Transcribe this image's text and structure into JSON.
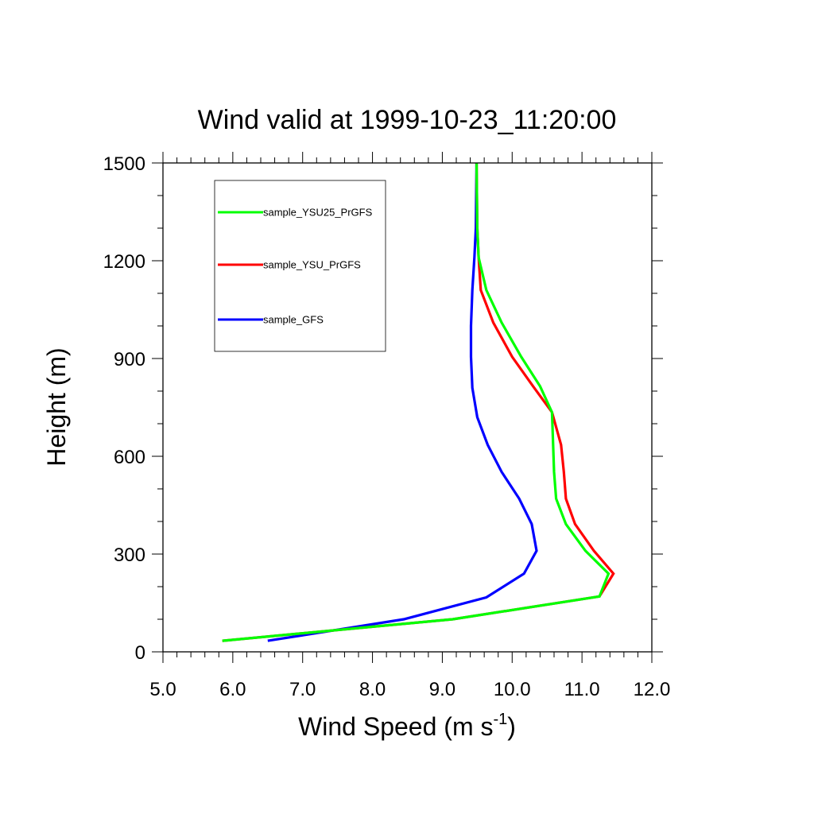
{
  "chart_data": {
    "type": "line",
    "title": "Wind valid at 1999-10-23_11:20:00",
    "xlabel_main": "Wind Speed (m s",
    "xlabel_sup": "-1",
    "xlabel_end": ")",
    "ylabel": "Height (m)",
    "xlim": [
      5.0,
      12.0
    ],
    "ylim": [
      0,
      1500
    ],
    "xticks": [
      5.0,
      6.0,
      7.0,
      8.0,
      9.0,
      10.0,
      11.0,
      12.0
    ],
    "xtick_labels": [
      "5.0",
      "6.0",
      "7.0",
      "8.0",
      "9.0",
      "10.0",
      "11.0",
      "12.0"
    ],
    "yticks": [
      0,
      300,
      600,
      900,
      1200,
      1500
    ],
    "ytick_labels": [
      "0",
      "300",
      "600",
      "900",
      "1200",
      "1500"
    ],
    "legend_position": "top-left",
    "series": [
      {
        "name": "sample_YSU25_PrGFS",
        "color": "#00ff00",
        "points": [
          [
            5.85,
            34
          ],
          [
            9.15,
            100
          ],
          [
            11.25,
            170
          ],
          [
            11.38,
            240
          ],
          [
            11.05,
            310
          ],
          [
            10.77,
            392
          ],
          [
            10.63,
            470
          ],
          [
            10.6,
            552
          ],
          [
            10.57,
            735
          ],
          [
            10.4,
            815
          ],
          [
            10.13,
            905
          ],
          [
            9.85,
            1010
          ],
          [
            9.63,
            1110
          ],
          [
            9.52,
            1210
          ],
          [
            9.5,
            1300
          ],
          [
            9.49,
            1500
          ]
        ]
      },
      {
        "name": "sample_YSU_PrGFS",
        "color": "#ff0000",
        "points": [
          [
            5.85,
            34
          ],
          [
            9.15,
            100
          ],
          [
            11.25,
            170
          ],
          [
            11.45,
            240
          ],
          [
            11.17,
            310
          ],
          [
            10.9,
            392
          ],
          [
            10.77,
            470
          ],
          [
            10.74,
            552
          ],
          [
            10.7,
            635
          ],
          [
            10.57,
            735
          ],
          [
            10.3,
            815
          ],
          [
            10.0,
            905
          ],
          [
            9.73,
            1010
          ],
          [
            9.55,
            1110
          ],
          [
            9.52,
            1210
          ],
          [
            9.5,
            1300
          ],
          [
            9.49,
            1500
          ]
        ]
      },
      {
        "name": "sample_GFS",
        "color": "#0000ff",
        "points": [
          [
            6.5,
            34
          ],
          [
            8.45,
            100
          ],
          [
            9.63,
            167
          ],
          [
            10.17,
            240
          ],
          [
            10.35,
            310
          ],
          [
            10.28,
            392
          ],
          [
            10.1,
            470
          ],
          [
            9.85,
            552
          ],
          [
            9.65,
            635
          ],
          [
            9.5,
            720
          ],
          [
            9.43,
            810
          ],
          [
            9.41,
            905
          ],
          [
            9.41,
            1000
          ],
          [
            9.43,
            1110
          ],
          [
            9.46,
            1210
          ],
          [
            9.48,
            1300
          ],
          [
            9.49,
            1500
          ]
        ]
      }
    ]
  }
}
